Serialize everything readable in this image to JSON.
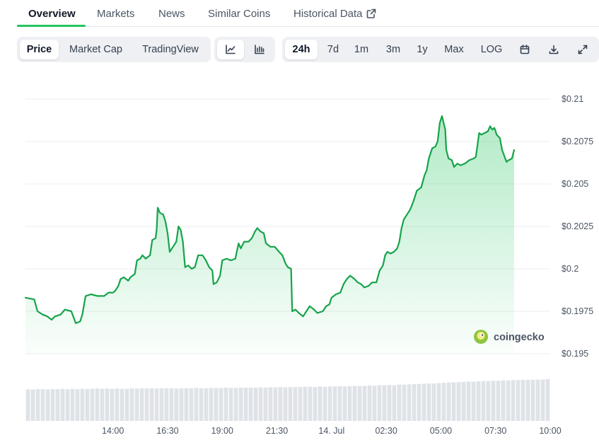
{
  "nav": {
    "tabs": [
      "Overview",
      "Markets",
      "News",
      "Similar Coins",
      "Historical Data"
    ],
    "active": "Overview"
  },
  "toolbar": {
    "metric_tabs": [
      "Price",
      "Market Cap",
      "TradingView"
    ],
    "active_metric": "Price",
    "chart_style": [
      "line-chart-icon",
      "candlestick-icon"
    ],
    "active_style": "line-chart-icon",
    "ranges": [
      "24h",
      "7d",
      "1m",
      "3m",
      "1y",
      "Max",
      "LOG"
    ],
    "active_range": "24h",
    "actions": [
      "calendar-icon",
      "download-icon",
      "fullscreen-icon"
    ]
  },
  "watermark": "coingecko",
  "colors": {
    "line": "#16a34a",
    "fill": "#22c55e",
    "volume": "#dfe3e8",
    "accent": "#22c55e"
  },
  "chart_data": {
    "type": "area",
    "y_axis_side": "right",
    "ylim": [
      0.195,
      0.21
    ],
    "yticks": [
      "$0.21",
      "$0.2075",
      "$0.205",
      "$0.2025",
      "$0.2",
      "$0.1975",
      "$0.195"
    ],
    "ytick_values": [
      0.21,
      0.2075,
      0.205,
      0.2025,
      0.2,
      0.1975,
      0.195
    ],
    "xticks": [
      "14:00",
      "16:30",
      "19:00",
      "21:30",
      "14. Jul",
      "02:30",
      "05:00",
      "07:30",
      "10:00"
    ],
    "xtick_hours": [
      3,
      5.5,
      8,
      10.5,
      13,
      15.5,
      18,
      20.5,
      23
    ],
    "x_range_hours": [
      -1,
      23
    ],
    "grid": true,
    "series": [
      {
        "type": "line",
        "points": [
          [
            -1,
            0.1983
          ],
          [
            -0.6,
            0.1982
          ],
          [
            -0.45,
            0.1975
          ],
          [
            -0.2,
            0.1973
          ],
          [
            0,
            0.1972
          ],
          [
            0.2,
            0.197
          ],
          [
            0.35,
            0.1972
          ],
          [
            0.6,
            0.1973
          ],
          [
            0.8,
            0.1976
          ],
          [
            1.1,
            0.1975
          ],
          [
            1.3,
            0.1968
          ],
          [
            1.5,
            0.1969
          ],
          [
            1.6,
            0.1973
          ],
          [
            1.75,
            0.1984
          ],
          [
            2.0,
            0.1985
          ],
          [
            2.3,
            0.1984
          ],
          [
            2.6,
            0.1984
          ],
          [
            2.8,
            0.1986
          ],
          [
            3.0,
            0.1986
          ],
          [
            3.1,
            0.1987
          ],
          [
            3.25,
            0.199
          ],
          [
            3.35,
            0.1994
          ],
          [
            3.5,
            0.1995
          ],
          [
            3.7,
            0.1993
          ],
          [
            3.8,
            0.1995
          ],
          [
            4.0,
            0.1997
          ],
          [
            4.1,
            0.2005
          ],
          [
            4.25,
            0.2006
          ],
          [
            4.35,
            0.2008
          ],
          [
            4.5,
            0.2006
          ],
          [
            4.7,
            0.2008
          ],
          [
            4.8,
            0.2017
          ],
          [
            4.95,
            0.2018
          ],
          [
            5.0,
            0.2023
          ],
          [
            5.05,
            0.2036
          ],
          [
            5.15,
            0.2033
          ],
          [
            5.3,
            0.2032
          ],
          [
            5.4,
            0.2028
          ],
          [
            5.5,
            0.2021
          ],
          [
            5.6,
            0.201
          ],
          [
            5.75,
            0.2013
          ],
          [
            5.9,
            0.2016
          ],
          [
            6.0,
            0.2025
          ],
          [
            6.1,
            0.2023
          ],
          [
            6.2,
            0.2016
          ],
          [
            6.3,
            0.2001
          ],
          [
            6.45,
            0.2002
          ],
          [
            6.6,
            0.2
          ],
          [
            6.75,
            0.2001
          ],
          [
            6.9,
            0.2008
          ],
          [
            7.1,
            0.2008
          ],
          [
            7.25,
            0.2005
          ],
          [
            7.4,
            0.2001
          ],
          [
            7.55,
            0.1999
          ],
          [
            7.6,
            0.1991
          ],
          [
            7.75,
            0.1992
          ],
          [
            7.9,
            0.1996
          ],
          [
            8.0,
            0.2005
          ],
          [
            8.2,
            0.2006
          ],
          [
            8.4,
            0.2005
          ],
          [
            8.6,
            0.2006
          ],
          [
            8.65,
            0.2009
          ],
          [
            8.75,
            0.2015
          ],
          [
            8.85,
            0.2012
          ],
          [
            9.0,
            0.2016
          ],
          [
            9.2,
            0.2016
          ],
          [
            9.35,
            0.2018
          ],
          [
            9.5,
            0.2022
          ],
          [
            9.6,
            0.2024
          ],
          [
            9.75,
            0.2022
          ],
          [
            9.9,
            0.2021
          ],
          [
            10.0,
            0.2015
          ],
          [
            10.2,
            0.2013
          ],
          [
            10.4,
            0.2013
          ],
          [
            10.6,
            0.201
          ],
          [
            10.75,
            0.2008
          ],
          [
            10.9,
            0.2003
          ],
          [
            11.0,
            0.2001
          ],
          [
            11.15,
            0.2
          ],
          [
            11.2,
            0.1975
          ],
          [
            11.35,
            0.1976
          ],
          [
            11.5,
            0.1974
          ],
          [
            11.7,
            0.1972
          ],
          [
            11.9,
            0.1976
          ],
          [
            12.0,
            0.1978
          ],
          [
            12.2,
            0.1976
          ],
          [
            12.35,
            0.1974
          ],
          [
            12.6,
            0.1975
          ],
          [
            12.75,
            0.1978
          ],
          [
            12.9,
            0.1979
          ],
          [
            13.0,
            0.1983
          ],
          [
            13.2,
            0.1985
          ],
          [
            13.4,
            0.1986
          ],
          [
            13.55,
            0.1991
          ],
          [
            13.7,
            0.1994
          ],
          [
            13.85,
            0.1996
          ],
          [
            14.05,
            0.1994
          ],
          [
            14.2,
            0.1992
          ],
          [
            14.35,
            0.1991
          ],
          [
            14.5,
            0.1989
          ],
          [
            14.7,
            0.199
          ],
          [
            14.85,
            0.1992
          ],
          [
            15.05,
            0.1992
          ],
          [
            15.2,
            0.1999
          ],
          [
            15.35,
            0.2002
          ],
          [
            15.45,
            0.2008
          ],
          [
            15.55,
            0.201
          ],
          [
            15.7,
            0.2009
          ],
          [
            15.85,
            0.201
          ],
          [
            16.0,
            0.2012
          ],
          [
            16.1,
            0.2016
          ],
          [
            16.2,
            0.2024
          ],
          [
            16.3,
            0.2029
          ],
          [
            16.45,
            0.2032
          ],
          [
            16.6,
            0.2035
          ],
          [
            16.75,
            0.204
          ],
          [
            16.9,
            0.2046
          ],
          [
            17.0,
            0.2047
          ],
          [
            17.1,
            0.2048
          ],
          [
            17.25,
            0.2055
          ],
          [
            17.35,
            0.2058
          ],
          [
            17.45,
            0.2065
          ],
          [
            17.6,
            0.2071
          ],
          [
            17.75,
            0.2072
          ],
          [
            17.85,
            0.2075
          ],
          [
            17.95,
            0.2086
          ],
          [
            18.05,
            0.209
          ],
          [
            18.2,
            0.2082
          ],
          [
            18.25,
            0.207
          ],
          [
            18.35,
            0.2065
          ],
          [
            18.5,
            0.2064
          ],
          [
            18.6,
            0.206
          ],
          [
            18.75,
            0.2062
          ],
          [
            18.9,
            0.2061
          ],
          [
            19.1,
            0.2062
          ],
          [
            19.3,
            0.2064
          ],
          [
            19.5,
            0.2065
          ],
          [
            19.6,
            0.2066
          ],
          [
            19.75,
            0.208
          ],
          [
            19.85,
            0.2079
          ],
          [
            20.0,
            0.208
          ],
          [
            20.15,
            0.2081
          ],
          [
            20.25,
            0.2084
          ],
          [
            20.35,
            0.2082
          ],
          [
            20.45,
            0.2083
          ],
          [
            20.55,
            0.2079
          ],
          [
            20.7,
            0.2077
          ],
          [
            20.8,
            0.207
          ],
          [
            21.0,
            0.2063
          ],
          [
            21.1,
            0.2064
          ],
          [
            21.25,
            0.2065
          ],
          [
            21.35,
            0.207
          ]
        ]
      },
      {
        "type": "volume",
        "values": [
          2.3,
          2.3,
          2.35,
          2.35,
          2.3,
          2.35,
          2.35,
          2.4,
          2.35,
          2.4,
          2.35,
          2.4,
          2.35,
          2.4,
          2.45,
          2.4,
          2.45,
          2.4,
          2.45,
          2.4,
          2.4,
          2.45,
          2.45,
          2.5,
          2.45,
          2.5,
          2.45,
          2.5,
          2.5,
          2.5,
          2.45,
          2.5,
          2.5,
          2.5,
          2.55,
          2.5,
          2.5,
          2.55,
          2.55,
          2.55,
          2.6,
          2.55,
          2.55,
          2.6,
          2.6,
          2.6,
          2.6,
          2.65,
          2.6,
          2.65,
          2.65,
          2.7,
          2.65,
          2.7,
          2.7,
          2.7,
          2.75,
          2.75,
          2.7,
          2.8,
          2.75,
          2.8,
          2.8,
          2.85,
          2.8,
          2.85,
          2.9,
          2.85,
          2.9,
          2.95,
          2.9,
          3.0,
          3.0,
          3.05,
          3.0,
          3.1,
          3.1,
          3.15,
          3.2,
          3.2,
          3.25,
          3.3,
          3.3,
          3.35,
          3.4,
          3.45,
          3.5,
          3.5,
          3.55,
          3.6,
          3.6,
          3.65,
          3.7,
          3.7,
          3.75,
          3.75,
          3.8,
          3.8,
          3.85,
          3.85,
          3.9,
          3.9,
          3.9,
          3.95,
          3.95,
          4.0
        ]
      }
    ]
  }
}
